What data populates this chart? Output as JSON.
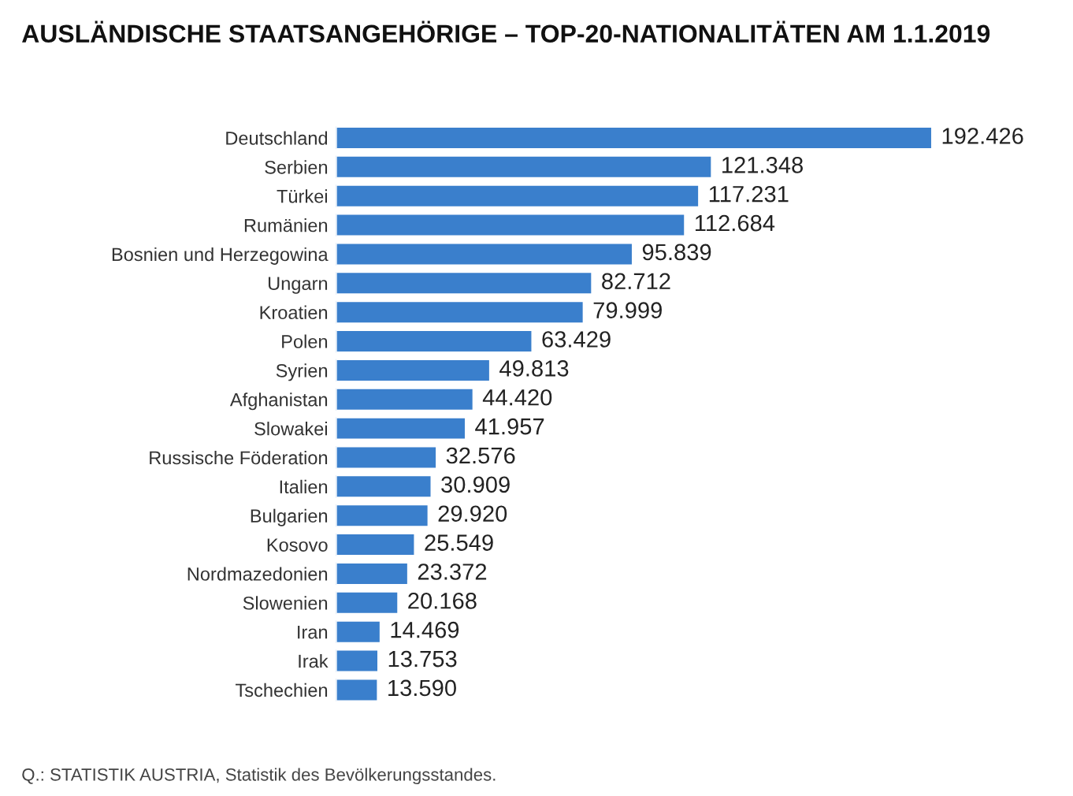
{
  "chart_data": {
    "type": "bar",
    "orientation": "horizontal",
    "title": "AUSLÄNDISCHE STAATSANGEHÖRIGE – TOP-20-NATIONALITÄTEN AM 1.1.2019",
    "categories": [
      "Deutschland",
      "Serbien",
      "Türkei",
      "Rumänien",
      "Bosnien und Herzegowina",
      "Ungarn",
      "Kroatien",
      "Polen",
      "Syrien",
      "Afghanistan",
      "Slowakei",
      "Russische Föderation",
      "Italien",
      "Bulgarien",
      "Kosovo",
      "Nordmazedonien",
      "Slowenien",
      "Iran",
      "Irak",
      "Tschechien"
    ],
    "values": [
      192426,
      121348,
      117231,
      112684,
      95839,
      82712,
      79999,
      63429,
      49813,
      44420,
      41957,
      32576,
      30909,
      29920,
      25549,
      23372,
      20168,
      14469,
      13753,
      13590
    ],
    "value_labels": [
      "192.426",
      "121.348",
      "117.231",
      "112.684",
      "95.839",
      "82.712",
      "79.999",
      "63.429",
      "49.813",
      "44.420",
      "41.957",
      "32.576",
      "30.909",
      "29.920",
      "25.549",
      "23.372",
      "20.168",
      "14.469",
      "13.753",
      "13.590"
    ],
    "color": "#3a7fcc",
    "tick_labels": "y",
    "grid": false,
    "legend": false,
    "annotations": [
      "Q.: STATISTIK AUSTRIA, Statistik des Bevölkerungsstandes."
    ]
  }
}
